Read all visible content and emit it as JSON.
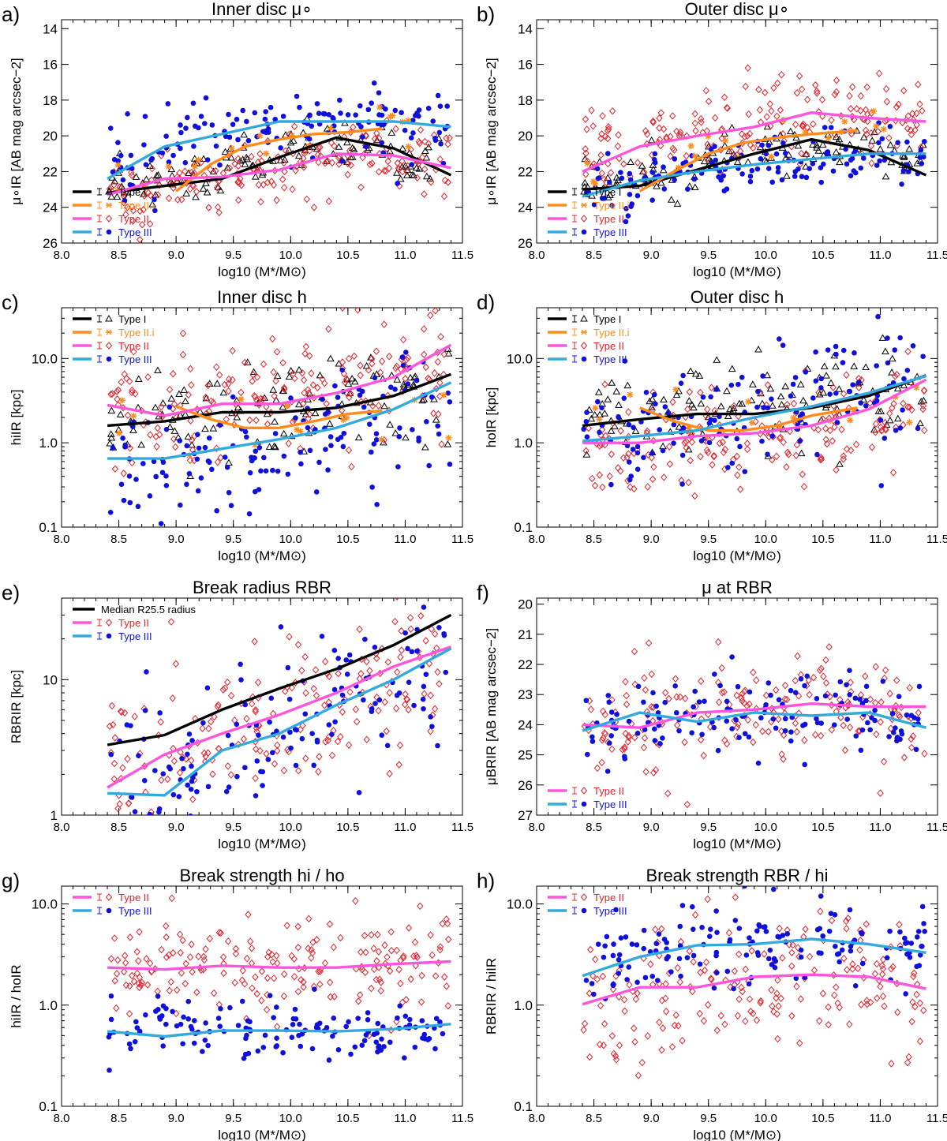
{
  "figure": {
    "x_label": "log10 (M*/M⊙)"
  },
  "series_styles": {
    "typeI": {
      "name": "Type I",
      "line_color": "#000000",
      "marker_color": "#000000",
      "marker": "triangle"
    },
    "typeIIi": {
      "name": "Type II.i",
      "line_color": "#ff8c1a",
      "marker_color": "#ff8c1a",
      "marker": "asterisk"
    },
    "typeII": {
      "name": "Type II",
      "line_color": "#ff55dd",
      "marker_color": "#e8202a",
      "marker": "diamond"
    },
    "typeIII": {
      "name": "Type III",
      "line_color": "#33aadd",
      "marker_color": "#1010dd",
      "marker": "dot"
    },
    "medianR": {
      "name": "Median R25.5 radius",
      "line_color": "#000000"
    }
  },
  "chart_data": [
    {
      "panel": "a)",
      "type": "line",
      "title": "Inner disc μ∘",
      "scale": "linear",
      "xlim": [
        8.0,
        11.5
      ],
      "ylim": [
        26,
        13.5
      ],
      "xticks": [
        "8.0",
        "8.5",
        "9.0",
        "9.5",
        "10.0",
        "10.5",
        "11.0",
        "11.5"
      ],
      "yticks": [
        "14",
        "16",
        "18",
        "20",
        "22",
        "24",
        "26"
      ],
      "ylabel": "μ∘IR [AB mag arcsec−2]",
      "legend": [
        "typeI",
        "typeIIi",
        "typeII",
        "typeIII"
      ],
      "legend_position": "bottom-left",
      "series": [
        {
          "key": "typeI",
          "x": [
            8.4,
            8.9,
            9.4,
            9.9,
            10.4,
            10.9,
            11.4
          ],
          "y": [
            23.2,
            22.8,
            22.4,
            21.2,
            20.1,
            20.7,
            22.2
          ]
        },
        {
          "key": "typeIIi",
          "x": [
            9.0,
            9.3,
            9.6,
            9.9,
            10.2,
            10.5,
            10.8
          ],
          "y": [
            23.1,
            21.6,
            20.6,
            20.2,
            19.9,
            19.8,
            19.6
          ]
        },
        {
          "key": "typeII",
          "x": [
            8.4,
            8.9,
            9.4,
            9.9,
            10.4,
            10.9,
            11.4
          ],
          "y": [
            23.3,
            22.4,
            22.3,
            21.9,
            21.0,
            21.1,
            21.8
          ]
        },
        {
          "key": "typeIII",
          "x": [
            8.4,
            8.9,
            9.4,
            9.9,
            10.4,
            10.9,
            11.4
          ],
          "y": [
            22.4,
            20.6,
            19.9,
            19.2,
            19.2,
            19.2,
            19.5
          ]
        }
      ],
      "scatter": [
        {
          "key": "typeI",
          "y_center": [
            22.6,
            22.3,
            21.4,
            20.3,
            20.6,
            21.4
          ],
          "spread": 1.0
        },
        {
          "key": "typeII",
          "y_center": [
            23.1,
            22.6,
            22.2,
            21.6,
            21.3,
            21.3
          ],
          "spread": 1.3
        },
        {
          "key": "typeIII",
          "y_center": [
            21.6,
            20.0,
            19.4,
            19.1,
            19.2,
            19.6
          ],
          "spread": 1.6
        },
        {
          "key": "typeIIi",
          "y_center": [
            22.4,
            21.3,
            20.3,
            19.6,
            19.2,
            19.1
          ],
          "spread": 0.8
        }
      ]
    },
    {
      "panel": "b)",
      "type": "line",
      "title": "Outer disc μ∘",
      "scale": "linear",
      "xlim": [
        8.0,
        11.5
      ],
      "ylim": [
        26,
        13.5
      ],
      "xticks": [
        "8.0",
        "8.5",
        "9.0",
        "9.5",
        "10.0",
        "10.5",
        "11.0",
        "11.5"
      ],
      "yticks": [
        "14",
        "16",
        "18",
        "20",
        "22",
        "24",
        "26"
      ],
      "ylabel": "μ∘IR [AB mag arcsec−2]",
      "legend": [
        "typeI",
        "typeIIi",
        "typeII",
        "typeIII"
      ],
      "legend_position": "bottom-left",
      "series": [
        {
          "key": "typeI",
          "x": [
            8.4,
            8.9,
            9.4,
            9.9,
            10.4,
            10.9,
            11.4
          ],
          "y": [
            23.0,
            22.8,
            21.9,
            21.0,
            20.2,
            20.8,
            22.2
          ]
        },
        {
          "key": "typeIIi",
          "x": [
            8.9,
            9.2,
            9.5,
            9.8,
            10.1,
            10.4,
            10.8
          ],
          "y": [
            23.1,
            22.0,
            21.0,
            20.4,
            20.1,
            19.9,
            19.7
          ]
        },
        {
          "key": "typeII",
          "x": [
            8.4,
            8.9,
            9.4,
            9.9,
            10.4,
            10.9,
            11.4
          ],
          "y": [
            22.0,
            20.6,
            20.0,
            19.5,
            18.7,
            19.0,
            19.2
          ]
        },
        {
          "key": "typeIII",
          "x": [
            8.4,
            8.9,
            9.4,
            9.9,
            10.4,
            10.9,
            11.4
          ],
          "y": [
            23.4,
            22.5,
            22.0,
            21.6,
            21.3,
            21.0,
            21.0
          ]
        }
      ],
      "scatter": [
        {
          "key": "typeI",
          "y_center": [
            22.9,
            22.4,
            21.4,
            20.7,
            20.6,
            21.4
          ],
          "spread": 1.0
        },
        {
          "key": "typeII",
          "y_center": [
            20.9,
            20.2,
            19.6,
            19.0,
            18.6,
            18.9
          ],
          "spread": 1.6
        },
        {
          "key": "typeIII",
          "y_center": [
            23.1,
            22.4,
            21.9,
            21.5,
            21.3,
            21.4
          ],
          "spread": 1.3
        },
        {
          "key": "typeIIi",
          "y_center": [
            22.6,
            21.3,
            20.5,
            20.0,
            19.6,
            19.4
          ],
          "spread": 0.8
        }
      ]
    },
    {
      "panel": "c)",
      "type": "line",
      "title": "Inner disc h",
      "scale": "log",
      "xlim": [
        8.0,
        11.5
      ],
      "ylim": [
        0.1,
        40
      ],
      "xticks": [
        "8.0",
        "8.5",
        "9.0",
        "9.5",
        "10.0",
        "10.5",
        "11.0",
        "11.5"
      ],
      "yticks": [
        "0.1",
        "1.0",
        "10.0"
      ],
      "ylabel": "hiIR [kpc]",
      "legend": [
        "typeI",
        "typeIIi",
        "typeII",
        "typeIII"
      ],
      "legend_position": "top-left",
      "series": [
        {
          "key": "typeI",
          "x": [
            8.4,
            8.9,
            9.4,
            9.9,
            10.4,
            10.9,
            11.4
          ],
          "y": [
            1.6,
            1.8,
            2.3,
            2.3,
            2.6,
            3.6,
            6.5
          ]
        },
        {
          "key": "typeIIi",
          "x": [
            9.0,
            9.3,
            9.6,
            9.9,
            10.2,
            10.5,
            10.8
          ],
          "y": [
            2.7,
            1.9,
            1.5,
            1.5,
            1.8,
            2.2,
            2.4
          ]
        },
        {
          "key": "typeII",
          "x": [
            8.4,
            8.9,
            9.4,
            9.9,
            10.4,
            10.9,
            11.4
          ],
          "y": [
            2.8,
            2.1,
            2.9,
            2.9,
            3.9,
            6.0,
            14.5
          ]
        },
        {
          "key": "typeIII",
          "x": [
            8.4,
            8.9,
            9.4,
            9.9,
            10.4,
            10.9,
            11.4
          ],
          "y": [
            0.65,
            0.65,
            0.85,
            1.1,
            1.5,
            2.5,
            5.2
          ]
        }
      ],
      "scatter": [
        {
          "key": "typeI",
          "y_center": [
            1.9,
            2.5,
            3.0,
            2.8,
            3.2,
            4.0
          ],
          "spread": 0.3
        },
        {
          "key": "typeII",
          "y_center": [
            2.4,
            2.6,
            3.4,
            3.8,
            5.5,
            8.0
          ],
          "spread": 0.38
        },
        {
          "key": "typeIII",
          "y_center": [
            0.6,
            0.7,
            0.9,
            1.2,
            1.8,
            3.0
          ],
          "spread": 0.35
        },
        {
          "key": "typeIIi",
          "y_center": [
            2.2,
            1.8,
            1.6,
            1.7,
            2.0,
            2.5
          ],
          "spread": 0.2
        }
      ]
    },
    {
      "panel": "d)",
      "type": "line",
      "title": "Outer disc h",
      "scale": "log",
      "xlim": [
        8.0,
        11.5
      ],
      "ylim": [
        0.1,
        40
      ],
      "xticks": [
        "8.0",
        "8.5",
        "9.0",
        "9.5",
        "10.0",
        "10.5",
        "11.0",
        "11.5"
      ],
      "yticks": [
        "0.1",
        "1.0",
        "10.0"
      ],
      "ylabel": "hoIR [kpc]",
      "legend": [
        "typeI",
        "typeIIi",
        "typeII",
        "typeIII"
      ],
      "legend_position": "top-left",
      "series": [
        {
          "key": "typeI",
          "x": [
            8.4,
            8.9,
            9.4,
            9.9,
            10.4,
            10.9,
            11.4
          ],
          "y": [
            1.6,
            1.9,
            2.2,
            2.2,
            2.6,
            3.6,
            6.3
          ]
        },
        {
          "key": "typeIIi",
          "x": [
            8.9,
            9.2,
            9.5,
            9.8,
            10.1,
            10.4,
            10.8
          ],
          "y": [
            2.6,
            1.8,
            1.4,
            1.4,
            1.6,
            2.1,
            2.6
          ]
        },
        {
          "key": "typeII",
          "x": [
            8.4,
            8.9,
            9.4,
            9.9,
            10.4,
            10.9,
            11.4
          ],
          "y": [
            1.0,
            1.0,
            1.2,
            1.3,
            1.6,
            2.5,
            5.6
          ]
        },
        {
          "key": "typeIII",
          "x": [
            8.4,
            8.9,
            9.4,
            9.9,
            10.4,
            10.9,
            11.4
          ],
          "y": [
            1.05,
            1.2,
            1.4,
            2.0,
            2.7,
            3.9,
            6.2
          ]
        }
      ],
      "scatter": [
        {
          "key": "typeI",
          "y_center": [
            2.0,
            2.6,
            3.0,
            2.7,
            3.0,
            4.0
          ],
          "spread": 0.3
        },
        {
          "key": "typeII",
          "y_center": [
            0.9,
            1.0,
            1.1,
            1.3,
            1.6,
            2.4
          ],
          "spread": 0.3
        },
        {
          "key": "typeIII",
          "y_center": [
            1.4,
            1.8,
            2.2,
            2.7,
            3.5,
            5.0
          ],
          "spread": 0.35
        },
        {
          "key": "typeIIi",
          "y_center": [
            2.2,
            1.6,
            1.4,
            1.5,
            1.9,
            2.6
          ],
          "spread": 0.2
        }
      ]
    },
    {
      "panel": "e)",
      "type": "line",
      "title": "Break radius RBR",
      "scale": "log",
      "xlim": [
        8.0,
        11.5
      ],
      "ylim": [
        1,
        40
      ],
      "xticks": [
        "8.0",
        "8.5",
        "9.0",
        "9.5",
        "10.0",
        "10.5",
        "11.0",
        "11.5"
      ],
      "yticks": [
        "1",
        "10"
      ],
      "ylabel": "RBRIR [kpc]",
      "legend": [
        "medianR",
        "typeII",
        "typeIII"
      ],
      "legend_position": "top-left",
      "series": [
        {
          "key": "medianR",
          "x": [
            8.4,
            8.9,
            9.4,
            9.9,
            10.4,
            10.9,
            11.4
          ],
          "y": [
            3.3,
            3.9,
            6.0,
            8.6,
            12.0,
            18.0,
            30.0
          ]
        },
        {
          "key": "typeII",
          "x": [
            8.4,
            8.9,
            9.4,
            9.9,
            10.4,
            10.9,
            11.4
          ],
          "y": [
            1.6,
            2.8,
            4.0,
            5.5,
            8.0,
            12.5,
            17.5
          ]
        },
        {
          "key": "typeIII",
          "x": [
            8.4,
            8.9,
            9.4,
            9.9,
            10.4,
            10.9,
            11.4
          ],
          "y": [
            1.45,
            1.4,
            3.0,
            4.0,
            6.5,
            10.0,
            17.0
          ]
        }
      ],
      "scatter": [
        {
          "key": "typeII",
          "y_center": [
            2.2,
            3.3,
            4.6,
            6.2,
            9.0,
            12.0
          ],
          "spread": 0.3
        },
        {
          "key": "typeIII",
          "y_center": [
            1.6,
            2.2,
            3.6,
            4.8,
            7.5,
            11.0
          ],
          "spread": 0.3
        }
      ]
    },
    {
      "panel": "f)",
      "type": "line",
      "title": "μ at RBR",
      "scale": "linear",
      "xlim": [
        8.0,
        11.5
      ],
      "ylim": [
        27,
        19.8
      ],
      "xticks": [
        "8.0",
        "8.5",
        "9.0",
        "9.5",
        "10.0",
        "10.5",
        "11.0",
        "11.5"
      ],
      "yticks": [
        "20",
        "21",
        "22",
        "23",
        "24",
        "25",
        "26",
        "27"
      ],
      "ylabel": "μBRIR [AB mag arcsec−2]",
      "legend": [
        "typeII",
        "typeIII"
      ],
      "legend_position": "bottom-left",
      "series": [
        {
          "key": "typeII",
          "x": [
            8.4,
            8.9,
            9.4,
            9.9,
            10.4,
            10.9,
            11.4
          ],
          "y": [
            24.0,
            24.1,
            23.6,
            23.5,
            23.3,
            23.4,
            23.4
          ]
        },
        {
          "key": "typeIII",
          "x": [
            8.4,
            8.9,
            9.4,
            9.9,
            10.4,
            10.9,
            11.4
          ],
          "y": [
            24.2,
            23.6,
            23.9,
            23.6,
            23.7,
            23.6,
            24.1
          ]
        }
      ],
      "scatter": [
        {
          "key": "typeII",
          "y_center": [
            24.0,
            23.8,
            23.6,
            23.4,
            23.3,
            23.4
          ],
          "spread": 1.3
        },
        {
          "key": "typeIII",
          "y_center": [
            24.2,
            23.8,
            23.8,
            23.6,
            23.6,
            23.7
          ],
          "spread": 1.0
        }
      ]
    },
    {
      "panel": "g)",
      "type": "line",
      "title": "Break strength hi / ho",
      "scale": "log",
      "xlim": [
        8.0,
        11.5
      ],
      "ylim": [
        0.1,
        15
      ],
      "xticks": [
        "8.0",
        "8.5",
        "9.0",
        "9.5",
        "10.0",
        "10.5",
        "11.0",
        "11.5"
      ],
      "yticks": [
        "0.1",
        "1.0",
        "10.0"
      ],
      "ylabel": "hiIR / hoIR",
      "legend": [
        "typeII",
        "typeIII"
      ],
      "legend_position": "top-left",
      "series": [
        {
          "key": "typeII",
          "x": [
            8.4,
            8.9,
            9.4,
            9.9,
            10.4,
            10.9,
            11.4
          ],
          "y": [
            2.35,
            2.25,
            2.45,
            2.35,
            2.35,
            2.55,
            2.7
          ]
        },
        {
          "key": "typeIII",
          "x": [
            8.4,
            8.9,
            9.4,
            9.9,
            10.4,
            10.9,
            11.4
          ],
          "y": [
            0.55,
            0.49,
            0.56,
            0.56,
            0.55,
            0.58,
            0.65
          ]
        }
      ],
      "scatter": [
        {
          "key": "typeII",
          "y_center": [
            2.2,
            2.3,
            2.3,
            2.2,
            2.3,
            2.5
          ],
          "spread": 0.25
        },
        {
          "key": "typeIII",
          "y_center": [
            0.55,
            0.53,
            0.55,
            0.55,
            0.55,
            0.57
          ],
          "spread": 0.15
        }
      ]
    },
    {
      "panel": "h)",
      "type": "line",
      "title": "Break strength RBR / hi",
      "scale": "log",
      "xlim": [
        8.0,
        11.5
      ],
      "ylim": [
        0.1,
        15
      ],
      "xticks": [
        "8.0",
        "8.5",
        "9.0",
        "9.5",
        "10.0",
        "10.5",
        "11.0",
        "11.5"
      ],
      "yticks": [
        "0.1",
        "1.0",
        "10.0"
      ],
      "ylabel": "RBRIR / hiIR",
      "legend": [
        "typeII",
        "typeIII"
      ],
      "legend_position": "top-left",
      "series": [
        {
          "key": "typeII",
          "x": [
            8.4,
            8.9,
            9.4,
            9.9,
            10.4,
            10.9,
            11.4
          ],
          "y": [
            1.02,
            1.5,
            1.5,
            1.9,
            2.0,
            1.9,
            1.45
          ]
        },
        {
          "key": "typeIII",
          "x": [
            8.4,
            8.9,
            9.4,
            9.9,
            10.4,
            10.9,
            11.4
          ],
          "y": [
            1.95,
            3.0,
            3.9,
            4.0,
            4.5,
            4.0,
            3.3
          ]
        }
      ],
      "scatter": [
        {
          "key": "typeII",
          "y_center": [
            1.1,
            1.4,
            1.6,
            1.8,
            1.9,
            1.7
          ],
          "spread": 0.35
        },
        {
          "key": "typeIII",
          "y_center": [
            2.3,
            3.2,
            3.9,
            4.0,
            4.2,
            3.8
          ],
          "spread": 0.2
        }
      ]
    }
  ]
}
